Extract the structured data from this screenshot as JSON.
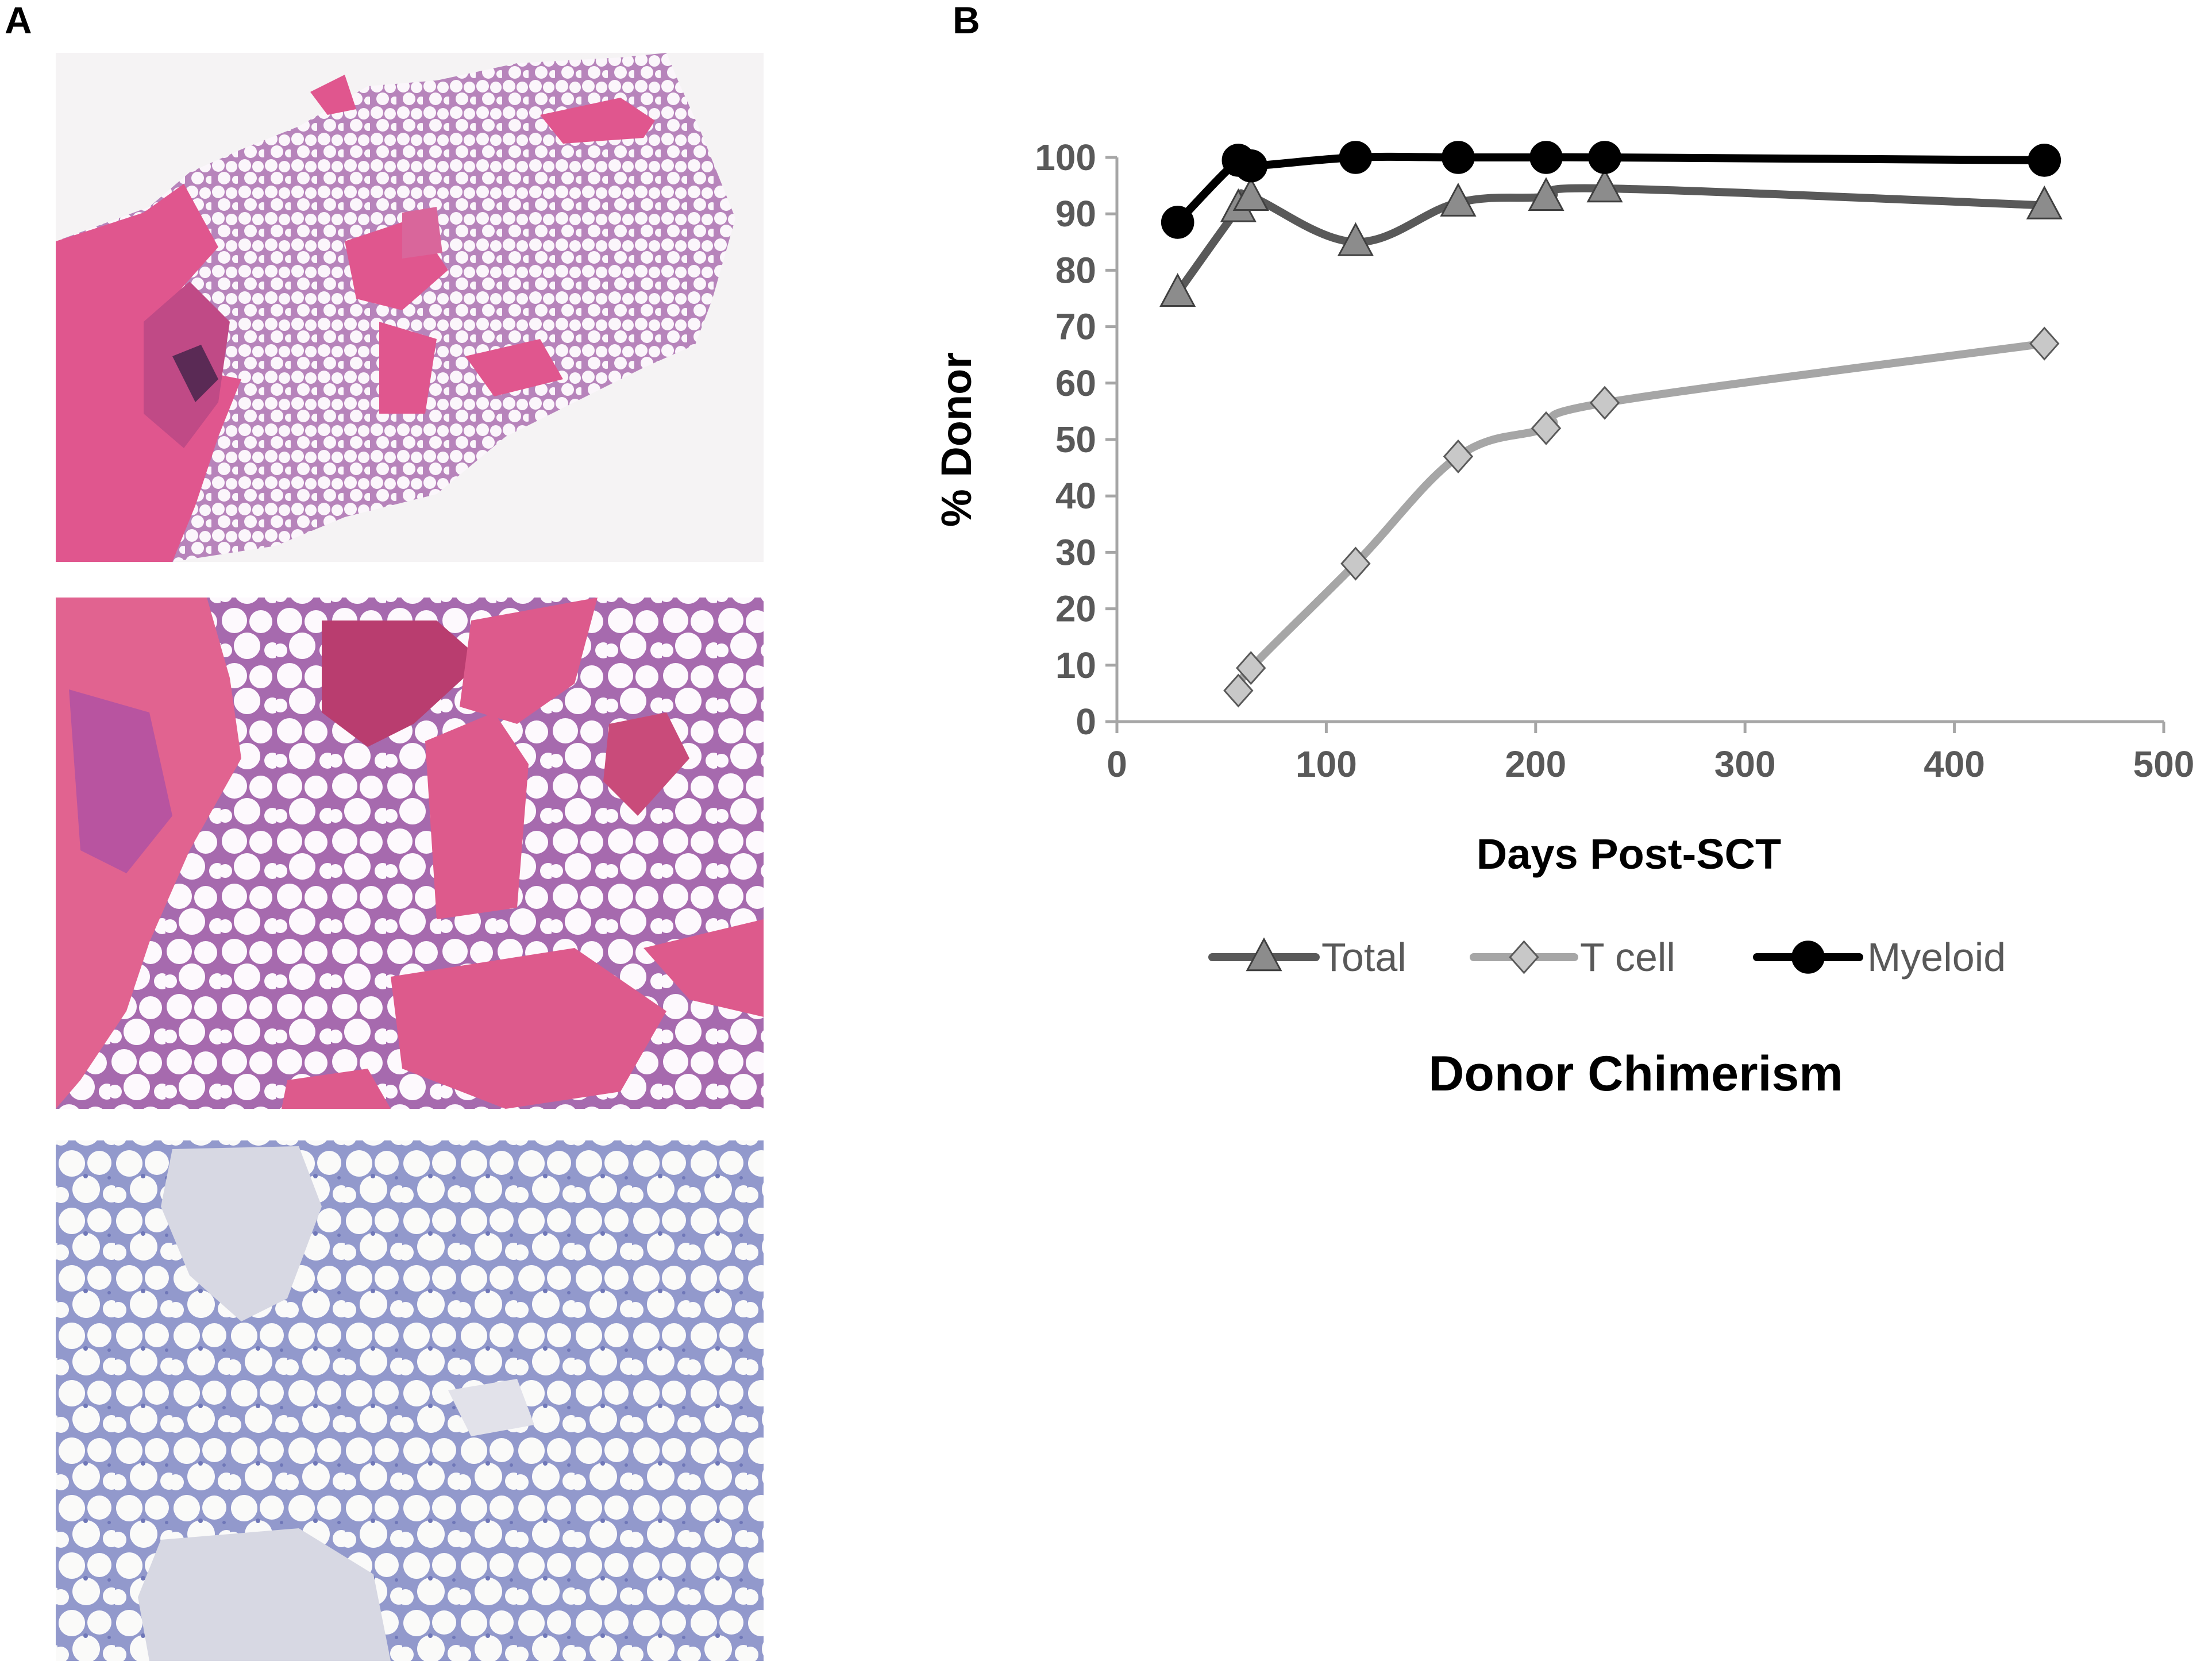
{
  "figure": {
    "panel_a_label": "A",
    "panel_b_label": "B",
    "panel_a": {
      "images": [
        {
          "name": "he-stain-low-magnification",
          "colors": {
            "background": "#f5f3f4",
            "bone": "#e0568e",
            "fat": "#fbf6fb",
            "marrow": "#b87ab8"
          }
        },
        {
          "name": "he-stain-high-magnification",
          "colors": {
            "background": "#f3eef3",
            "bone": "#dd5a8c",
            "fat": "#fdf9fd",
            "marrow": "#a66aae"
          }
        },
        {
          "name": "immunostain-negative",
          "colors": {
            "background": "#f1f1f4",
            "bone": "#d7d8e3",
            "fat": "#fafaf9",
            "marrow": "#7f86c2"
          }
        }
      ]
    }
  },
  "chart_data": {
    "type": "line",
    "title": "Donor Chimerism",
    "xlabel": "Days Post-SCT",
    "ylabel": "% Donor",
    "xlim": [
      0,
      500
    ],
    "ylim": [
      0,
      100
    ],
    "xticks": [
      "0",
      "100",
      "200",
      "300",
      "400",
      "500"
    ],
    "yticks": [
      "0",
      "10",
      "20",
      "30",
      "40",
      "50",
      "60",
      "70",
      "80",
      "90",
      "100"
    ],
    "grid": false,
    "legend_position": "bottom",
    "series": [
      {
        "name": "Total",
        "marker": "triangle",
        "color": "#595959",
        "marker_fill": "#8c8c8c",
        "points": [
          {
            "x": 29,
            "y": 76
          },
          {
            "x": 58,
            "y": 91
          },
          {
            "x": 64,
            "y": 93
          },
          {
            "x": 114,
            "y": 85
          },
          {
            "x": 163,
            "y": 92
          },
          {
            "x": 205,
            "y": 93
          },
          {
            "x": 233,
            "y": 94.5
          },
          {
            "x": 443,
            "y": 91.5
          }
        ]
      },
      {
        "name": "T cell",
        "marker": "diamond",
        "color": "#a6a6a6",
        "marker_fill": "#c8c8c8",
        "points": [
          {
            "x": 58,
            "y": 5.5
          },
          {
            "x": 64,
            "y": 9.5
          },
          {
            "x": 114,
            "y": 28
          },
          {
            "x": 163,
            "y": 47
          },
          {
            "x": 205,
            "y": 52
          },
          {
            "x": 233,
            "y": 56.5
          },
          {
            "x": 443,
            "y": 67
          }
        ]
      },
      {
        "name": "Myeloid",
        "marker": "circle",
        "color": "#000000",
        "marker_fill": "#000000",
        "points": [
          {
            "x": 29,
            "y": 88.5
          },
          {
            "x": 58,
            "y": 99.5
          },
          {
            "x": 64,
            "y": 98.5
          },
          {
            "x": 114,
            "y": 100
          },
          {
            "x": 163,
            "y": 100
          },
          {
            "x": 205,
            "y": 100
          },
          {
            "x": 233,
            "y": 100
          },
          {
            "x": 443,
            "y": 99.5
          }
        ]
      }
    ]
  }
}
